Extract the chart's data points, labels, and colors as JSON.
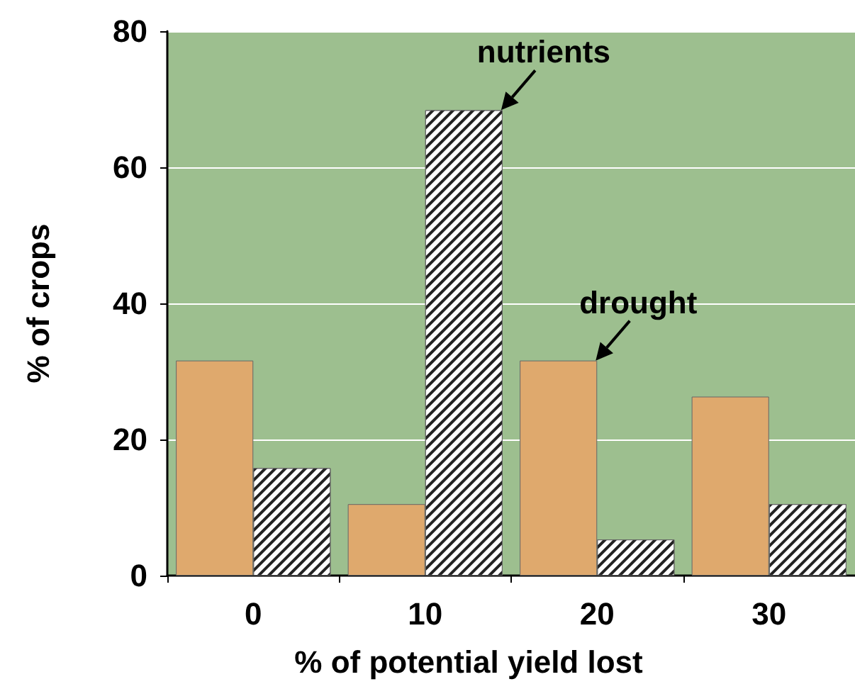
{
  "chart_data": {
    "type": "bar",
    "xlabel": "% of potential yield lost",
    "ylabel": "% of crops",
    "categories": [
      "0",
      "10",
      "20",
      "30"
    ],
    "series": [
      {
        "color": "#dfa96d",
        "values": [
          31.6,
          10.5,
          31.6,
          26.3
        ]
      },
      {
        "color": "#ffffff",
        "values": [
          15.8,
          68.4,
          5.3,
          10.5
        ]
      }
    ],
    "ylim": [
      0,
      80
    ],
    "yticks": [
      0,
      20,
      40,
      60,
      80
    ],
    "grid": "y",
    "annotations": [
      {
        "text": "nutrients",
        "x": "10",
        "y": 68.4
      },
      {
        "text": "drought",
        "x": "20",
        "y": 31.6
      }
    ]
  }
}
